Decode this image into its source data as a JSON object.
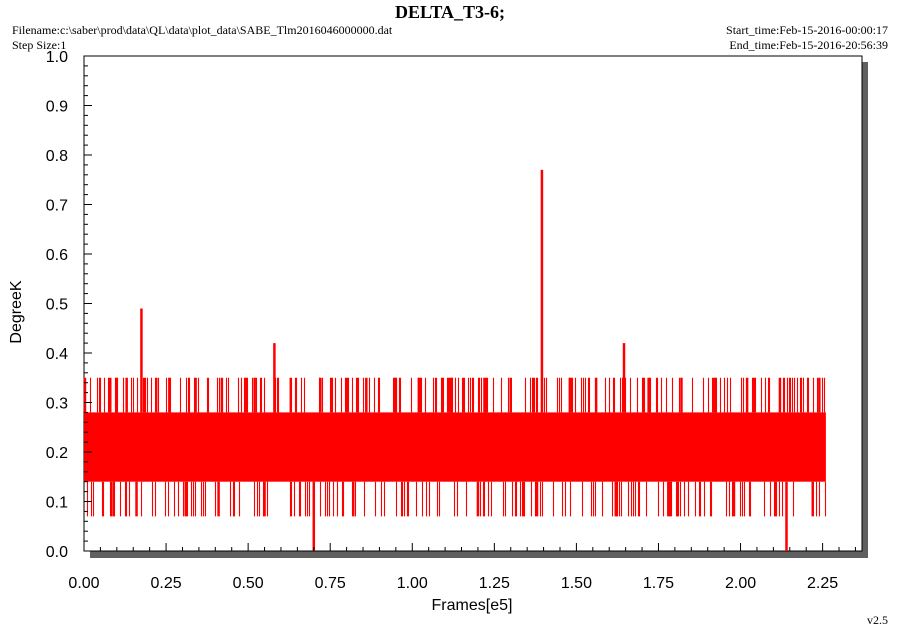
{
  "header": {
    "title": "DELTA_T3-6;",
    "filename": "Filename:c:\\saber\\prod\\data\\QL\\data\\plot_data\\SABE_Tlm2016046000000.dat",
    "step_size": "Step Size:1",
    "start_time": "Start_time:Feb-15-2016-00:00:17",
    "end_time": "End_time:Feb-15-2016-20:56:39"
  },
  "footer": {
    "version": "v2.5"
  },
  "chart_data": {
    "type": "line",
    "title": "DELTA_T3-6;",
    "xlabel": "Frames[e5]",
    "ylabel": "DegreeK",
    "xlim": [
      0,
      2.37
    ],
    "ylim": [
      0,
      1.0
    ],
    "x_ticks": [
      "0.00",
      "0.25",
      "0.50",
      "0.75",
      "1.00",
      "1.25",
      "1.50",
      "1.75",
      "2.00",
      "2.25"
    ],
    "x_tick_values": [
      0,
      0.25,
      0.5,
      0.75,
      1.0,
      1.25,
      1.5,
      1.75,
      2.0,
      2.25
    ],
    "y_ticks": [
      "0.0",
      "0.1",
      "0.2",
      "0.3",
      "0.4",
      "0.5",
      "0.6",
      "0.7",
      "0.8",
      "0.9",
      "1.0"
    ],
    "y_tick_values": [
      0,
      0.1,
      0.2,
      0.3,
      0.4,
      0.5,
      0.6,
      0.7,
      0.8,
      0.9,
      1.0
    ],
    "grid": false,
    "series": [
      {
        "color": "#ff0000",
        "x_range": [
          0,
          2.26
        ],
        "band_low": 0.14,
        "band_high": 0.28,
        "levels": [
          0.07,
          0.14,
          0.21,
          0.28,
          0.35
        ],
        "spikes_high": [
          {
            "x": 0.003,
            "y": 0.35
          },
          {
            "x": 0.08,
            "y": 0.35
          },
          {
            "x": 0.1,
            "y": 0.35
          },
          {
            "x": 0.13,
            "y": 0.35
          },
          {
            "x": 0.175,
            "y": 0.49
          },
          {
            "x": 0.22,
            "y": 0.35
          },
          {
            "x": 0.26,
            "y": 0.35
          },
          {
            "x": 0.34,
            "y": 0.35
          },
          {
            "x": 0.42,
            "y": 0.35
          },
          {
            "x": 0.52,
            "y": 0.35
          },
          {
            "x": 0.58,
            "y": 0.42
          },
          {
            "x": 0.63,
            "y": 0.35
          },
          {
            "x": 0.72,
            "y": 0.35
          },
          {
            "x": 0.86,
            "y": 0.35
          },
          {
            "x": 0.95,
            "y": 0.35
          },
          {
            "x": 1.02,
            "y": 0.35
          },
          {
            "x": 1.12,
            "y": 0.35
          },
          {
            "x": 1.22,
            "y": 0.35
          },
          {
            "x": 1.3,
            "y": 0.35
          },
          {
            "x": 1.395,
            "y": 0.77
          },
          {
            "x": 1.48,
            "y": 0.35
          },
          {
            "x": 1.56,
            "y": 0.35
          },
          {
            "x": 1.645,
            "y": 0.42
          },
          {
            "x": 1.72,
            "y": 0.35
          },
          {
            "x": 1.82,
            "y": 0.35
          },
          {
            "x": 1.92,
            "y": 0.35
          },
          {
            "x": 2.02,
            "y": 0.35
          },
          {
            "x": 2.12,
            "y": 0.35
          },
          {
            "x": 2.24,
            "y": 0.35
          }
        ],
        "spikes_low": [
          {
            "x": 0.09,
            "y": 0.07
          },
          {
            "x": 0.16,
            "y": 0.07
          },
          {
            "x": 0.31,
            "y": 0.07
          },
          {
            "x": 0.41,
            "y": 0.07
          },
          {
            "x": 0.55,
            "y": 0.07
          },
          {
            "x": 0.7,
            "y": 0.0
          },
          {
            "x": 0.82,
            "y": 0.07
          },
          {
            "x": 1.2,
            "y": 0.07
          },
          {
            "x": 1.38,
            "y": 0.07
          },
          {
            "x": 1.62,
            "y": 0.07
          },
          {
            "x": 1.78,
            "y": 0.07
          },
          {
            "x": 1.98,
            "y": 0.07
          },
          {
            "x": 2.14,
            "y": 0.0
          },
          {
            "x": 2.22,
            "y": 0.07
          }
        ]
      }
    ]
  }
}
